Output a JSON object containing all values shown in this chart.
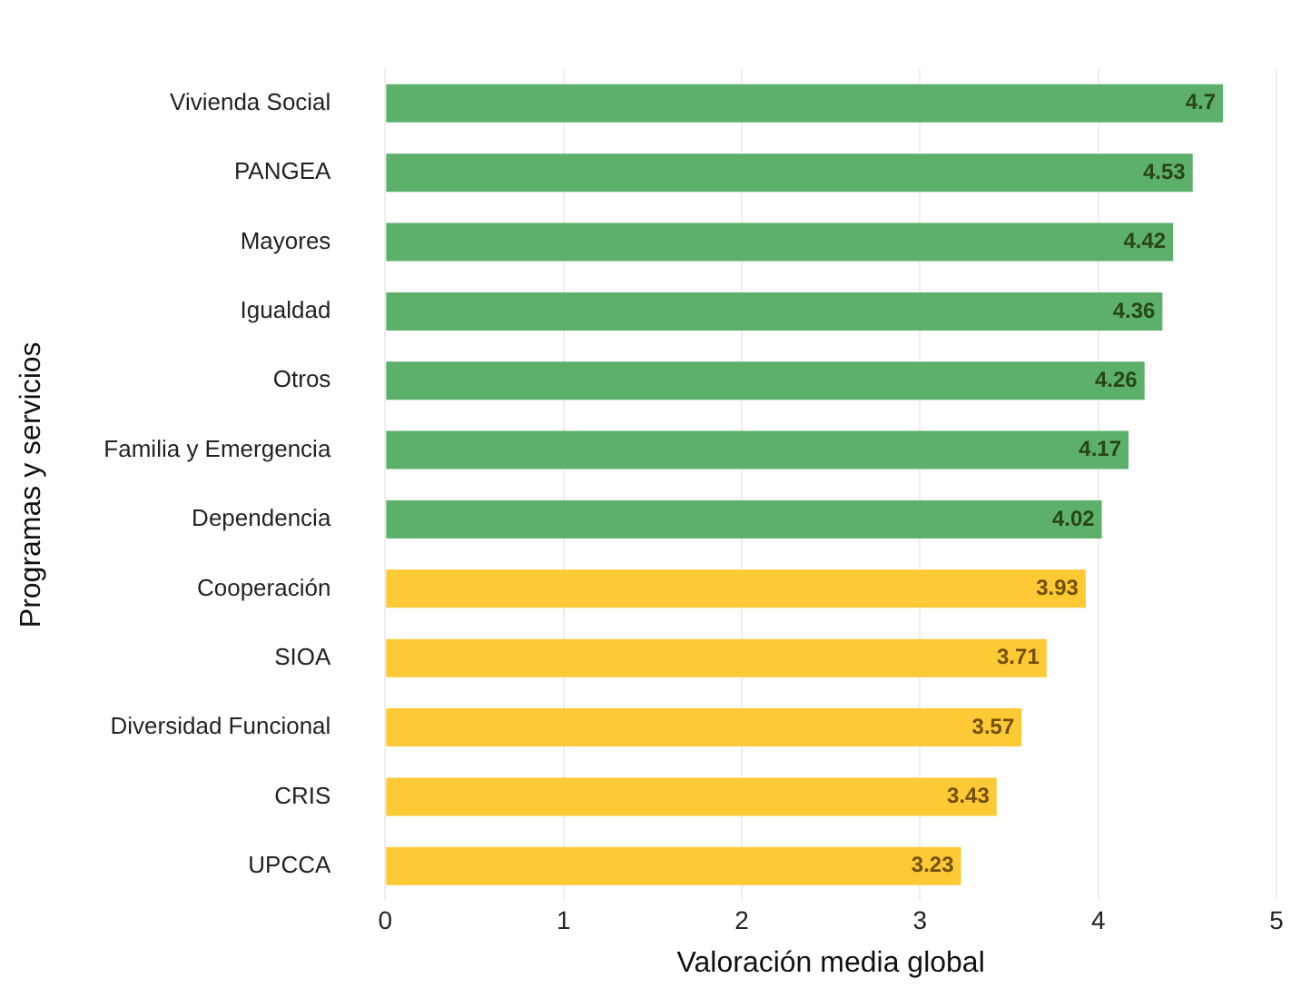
{
  "chart_data": {
    "type": "bar",
    "orientation": "horizontal",
    "xlabel": "Valoración media global",
    "ylabel": "Programas y servicios",
    "categories": [
      "Vivienda Social",
      "PANGEA",
      "Mayores",
      "Igualdad",
      "Otros",
      "Familia y Emergencia",
      "Dependencia",
      "Cooperación",
      "SIOA",
      "Diversidad Funcional",
      "CRIS",
      "UPCCA"
    ],
    "values": [
      4.7,
      4.53,
      4.42,
      4.36,
      4.26,
      4.17,
      4.02,
      3.93,
      3.71,
      3.57,
      3.43,
      3.23
    ],
    "colors": [
      "#5cb06a",
      "#5cb06a",
      "#5cb06a",
      "#5cb06a",
      "#5cb06a",
      "#5cb06a",
      "#5cb06a",
      "#fdc934",
      "#fdc934",
      "#fdc934",
      "#fdc934",
      "#fdc934"
    ],
    "xlim": [
      0,
      5
    ],
    "xticks": [
      0,
      1,
      2,
      3,
      4,
      5
    ],
    "grid": "x",
    "data_labels": true,
    "legend": false
  }
}
